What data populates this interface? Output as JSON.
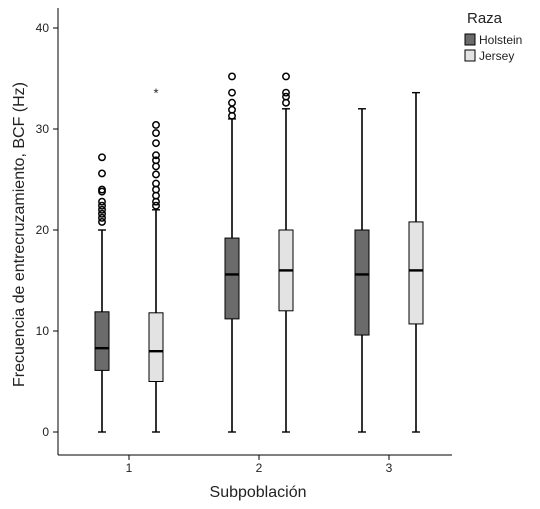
{
  "chart_data": {
    "type": "boxplot",
    "title": "",
    "xlabel": "Subpoblación",
    "ylabel": "Frecuencia de entrecruzamiento, BCF (Hz)",
    "ylim": [
      0,
      40
    ],
    "yticks": [
      0,
      10,
      20,
      30,
      40
    ],
    "categories": [
      "1",
      "2",
      "3"
    ],
    "legend": {
      "title": "Raza",
      "position": "top-right"
    },
    "series": [
      {
        "name": "Holstein",
        "color": "#6b6b6b",
        "boxes": [
          {
            "category": "1",
            "min": 0,
            "q1": 6.1,
            "median": 8.3,
            "q3": 11.9,
            "max": 20,
            "outliers": [
              20.8,
              21.2,
              21.6,
              22.0,
              22.4,
              22.8,
              23.8,
              24.0,
              25.6,
              27.2
            ],
            "extremes": []
          },
          {
            "category": "2",
            "min": 0,
            "q1": 11.2,
            "median": 15.6,
            "q3": 19.2,
            "max": 31.0,
            "outliers": [
              31.3,
              31.9,
              32.6,
              33.6,
              35.2
            ],
            "extremes": []
          },
          {
            "category": "3",
            "min": 0,
            "q1": 9.6,
            "median": 15.6,
            "q3": 20.0,
            "max": 32.0,
            "outliers": [],
            "extremes": []
          }
        ]
      },
      {
        "name": "Jersey",
        "color": "#e3e3e3",
        "boxes": [
          {
            "category": "1",
            "min": 0,
            "q1": 5.0,
            "median": 8.0,
            "q3": 11.8,
            "max": 22.0,
            "outliers": [
              22.4,
              22.8,
              23.4,
              24.0,
              24.6,
              25.5,
              26.3,
              26.9,
              27.4,
              28.6,
              29.6,
              30.4
            ],
            "extremes": [
              33.6
            ]
          },
          {
            "category": "2",
            "min": 0,
            "q1": 12.0,
            "median": 16.0,
            "q3": 20.0,
            "max": 32.0,
            "outliers": [
              32.6,
              33.2,
              33.6,
              35.2
            ],
            "extremes": []
          },
          {
            "category": "3",
            "min": 0,
            "q1": 10.7,
            "median": 16.0,
            "q3": 20.8,
            "max": 33.6,
            "outliers": [],
            "extremes": []
          }
        ]
      }
    ]
  }
}
